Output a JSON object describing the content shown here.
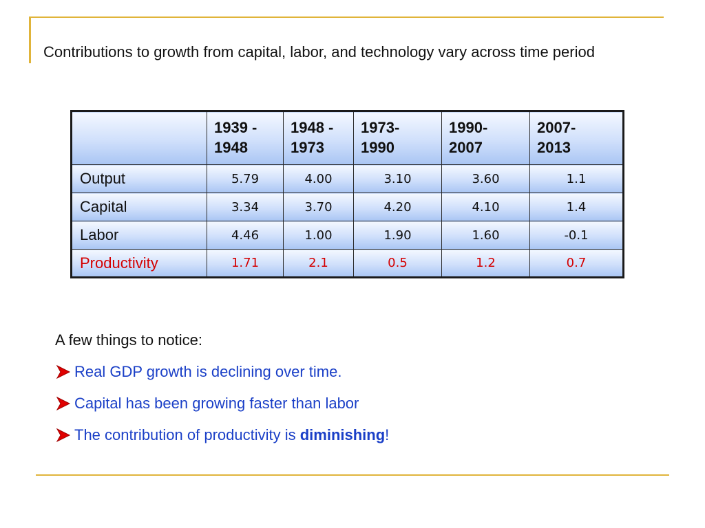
{
  "slide": {
    "title": "Contributions to growth from capital, labor, and technology vary across time period"
  },
  "table": {
    "columns": [
      "",
      "1939 - 1948",
      "1948 - 1973",
      "1973-1990",
      "1990-2007",
      "2007-2013"
    ],
    "column_lines": [
      [],
      [
        "1939 -",
        "1948"
      ],
      [
        "1948 -",
        "1973"
      ],
      [
        "1973-",
        "1990"
      ],
      [
        "1990-",
        "2007"
      ],
      [
        "2007-",
        "2013"
      ]
    ],
    "rows": [
      {
        "label": "Output",
        "values": [
          "5.79",
          "4.00",
          "3.10",
          "3.60",
          "1.1"
        ]
      },
      {
        "label": "Capital",
        "values": [
          "3.34",
          "3.70",
          "4.20",
          "4.10",
          "1.4"
        ]
      },
      {
        "label": "Labor",
        "values": [
          "4.46",
          "1.00",
          "1.90",
          "1.60",
          "-0.1"
        ]
      },
      {
        "label": "Productivity",
        "values": [
          "1.71",
          "2.1",
          "0.5",
          "1.2",
          "0.7"
        ]
      }
    ]
  },
  "notes": {
    "intro": "A few things to notice:",
    "bullets": [
      {
        "text": "Real GDP growth is declining over time."
      },
      {
        "text": "Capital has been growing faster than labor"
      },
      {
        "text_before": "The contribution of productivity is ",
        "emphasis": "diminishing",
        "text_after": "!"
      }
    ]
  },
  "colors": {
    "accent_line": "#e0b43a",
    "bullet_text": "#1a3fc7",
    "bullet_arrow": "#e00000",
    "productivity": "#d40000",
    "table_fill_top": "#f4f8ff",
    "table_fill_bottom": "#a9c5f3"
  },
  "icons": {
    "bullet": "arrow-bullet-icon"
  }
}
